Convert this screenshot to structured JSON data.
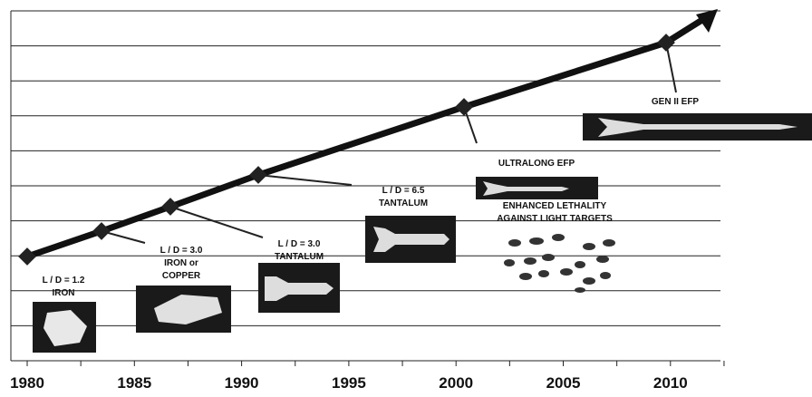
{
  "axis": {
    "ticks": [
      "1980",
      "1985",
      "1990",
      "1995",
      "2000",
      "2005",
      "2010"
    ]
  },
  "milestones": [
    {
      "label": [
        "L / D = 1.2",
        "IRON"
      ]
    },
    {
      "label": [
        "L / D = 3.0",
        "IRON or",
        "COPPER"
      ]
    },
    {
      "label": [
        "L / D = 3.0",
        "TANTALUM"
      ]
    },
    {
      "label": [
        "L / D = 6.5",
        "TANTALUM"
      ]
    },
    {
      "label": [
        "ULTRALONG EFP"
      ]
    },
    {
      "label": [
        "ENHANCED LETHALITY",
        "AGAINST LIGHT TARGETS"
      ]
    },
    {
      "label": [
        "GEN II EFP"
      ]
    }
  ]
}
